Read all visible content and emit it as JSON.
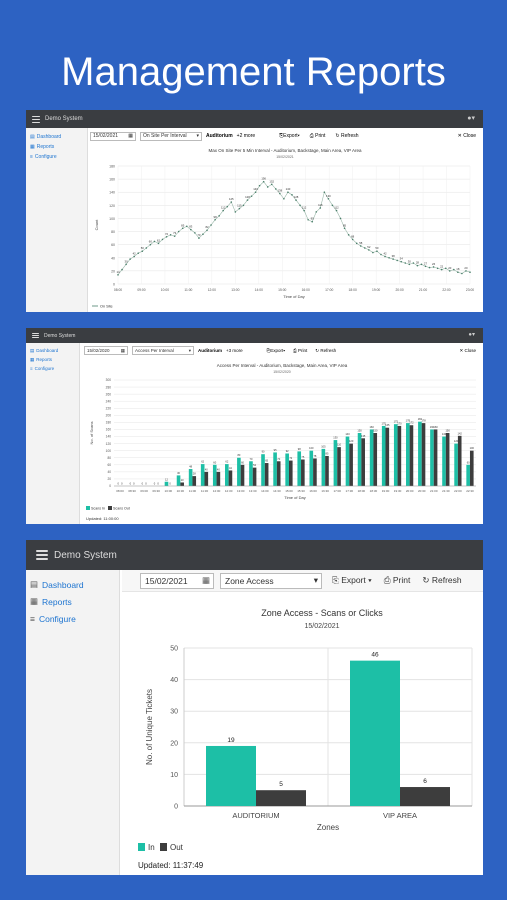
{
  "headline": "Management Reports",
  "colors": {
    "bg": "#2d62c2",
    "topbar": "#3a3d41",
    "teal": "#1dbfa6",
    "dark": "#3d3d3d",
    "link": "#1d74d0"
  },
  "panel1": {
    "app_title": "Demo System",
    "nav": [
      "Dashboard",
      "Reports",
      "Configure"
    ],
    "date": "15/02/2021",
    "report_select": "On Site Per Interval",
    "zone_tag": "Auditorium",
    "zone_more": "+2 more",
    "export": "Export",
    "print": "Print",
    "refresh": "Refresh",
    "close": "Close",
    "chart_title": "Max On Site Per 5 Min Interval - Auditorium, Backstage, Main Area, VIP Area",
    "chart_date": "15/02/2021",
    "ylabel": "Count",
    "xlabel": "Time of Day",
    "legend": "On Site",
    "updated": "Updated: 11:38:05"
  },
  "panel2": {
    "app_title": "Demo System",
    "nav": [
      "Dashboard",
      "Reports",
      "Configure"
    ],
    "date": "15/02/2020",
    "report_select": "Access Per Interval",
    "zone_tag": "Auditorium",
    "zone_more": "+3 more",
    "export": "Export",
    "print": "Print",
    "refresh": "Refresh",
    "close": "Close",
    "chart_title": "Access Per Interval - Auditorium, Backstage, Main Area, VIP Area",
    "chart_date": "15/02/2020",
    "ylabel": "No. of Scans",
    "xlabel": "Time of Day",
    "legend_in": "Scans In",
    "legend_out": "Scans Out",
    "updated": "Updated: 11:00:00"
  },
  "panel3": {
    "app_title": "Demo System",
    "nav": [
      "Dashboard",
      "Reports",
      "Configure"
    ],
    "date": "15/02/2021",
    "report_select": "Zone Access",
    "export": "Export",
    "print": "Print",
    "refresh": "Refresh",
    "updated": "Updated: 11:37:49"
  },
  "chart_data": [
    {
      "type": "line",
      "title": "Max On Site Per 5 Min Interval - Auditorium, Backstage, Main Area, VIP Area",
      "subtitle": "15/02/2021",
      "xlabel": "Time of Day",
      "ylabel": "Count",
      "ylim": [
        0,
        180
      ],
      "yticks": [
        0,
        20,
        40,
        60,
        80,
        100,
        120,
        140,
        160,
        180
      ],
      "x_ticks": [
        "08:00",
        "09:00",
        "10:00",
        "11:00",
        "12:00",
        "13:00",
        "14:00",
        "15:00",
        "16:00",
        "17:00",
        "18:00",
        "19:00",
        "20:00",
        "21:00",
        "22:00",
        "23:00"
      ],
      "series": [
        {
          "name": "On Site",
          "values": [
            14,
            22,
            30,
            38,
            42,
            47,
            50,
            55,
            60,
            65,
            62,
            68,
            72,
            75,
            73,
            80,
            85,
            88,
            83,
            78,
            70,
            76,
            82,
            90,
            98,
            104,
            112,
            118,
            125,
            110,
            115,
            120,
            128,
            134,
            140,
            150,
            156,
            148,
            152,
            145,
            138,
            130,
            140,
            136,
            128,
            120,
            112,
            98,
            95,
            110,
            116,
            140,
            130,
            120,
            112,
            100,
            85,
            75,
            68,
            62,
            58,
            55,
            52,
            48,
            50,
            45,
            42,
            40,
            38,
            36,
            34,
            32,
            30,
            32,
            28,
            30,
            27,
            25,
            26,
            24,
            22,
            24,
            20,
            22,
            18,
            16,
            20,
            18
          ]
        }
      ],
      "legend": "bottom-left"
    },
    {
      "type": "bar",
      "title": "Access Per Interval - Auditorium, Backstage, Main Area, VIP Area",
      "subtitle": "15/02/2020",
      "xlabel": "Time of Day",
      "ylabel": "No. of Scans",
      "ylim": [
        0,
        300
      ],
      "yticks": [
        0,
        20,
        40,
        60,
        80,
        100,
        120,
        140,
        160,
        180,
        200,
        220,
        240,
        260,
        280,
        300
      ],
      "categories": [
        "08:00",
        "08:30",
        "09:00",
        "09:30",
        "10:00",
        "10:30",
        "11:00",
        "11:30",
        "12:00",
        "12:30",
        "13:00",
        "13:30",
        "14:00",
        "14:30",
        "15:00",
        "15:30",
        "16:00",
        "16:30",
        "17:00",
        "17:30",
        "18:00",
        "18:30",
        "19:00",
        "19:30",
        "20:00",
        "20:30",
        "21:00",
        "21:30",
        "22:00",
        "22:30"
      ],
      "series": [
        {
          "name": "Scans In",
          "values": [
            0,
            0,
            0,
            0,
            12,
            30,
            48,
            62,
            60,
            62,
            80,
            70,
            90,
            95,
            92,
            98,
            100,
            105,
            130,
            140,
            150,
            160,
            170,
            175,
            178,
            182,
            160,
            140,
            120,
            60
          ]
        },
        {
          "name": "Scans Out",
          "values": [
            0,
            0,
            0,
            0,
            0,
            10,
            28,
            40,
            40,
            44,
            60,
            52,
            65,
            70,
            72,
            75,
            78,
            85,
            110,
            120,
            135,
            150,
            165,
            170,
            172,
            178,
            160,
            150,
            142,
            100
          ]
        }
      ],
      "legend": "bottom-left"
    },
    {
      "type": "bar",
      "title": "Zone Access - Scans or Clicks",
      "subtitle": "15/02/2021",
      "xlabel": "Zones",
      "ylabel": "No. of Unique Tickets",
      "ylim": [
        0,
        50
      ],
      "yticks": [
        0,
        10,
        20,
        30,
        40,
        50
      ],
      "categories": [
        "AUDITORIUM",
        "VIP AREA"
      ],
      "series": [
        {
          "name": "In",
          "values": [
            19,
            46
          ]
        },
        {
          "name": "Out",
          "values": [
            5,
            6
          ]
        }
      ],
      "legend": "bottom-left"
    }
  ]
}
